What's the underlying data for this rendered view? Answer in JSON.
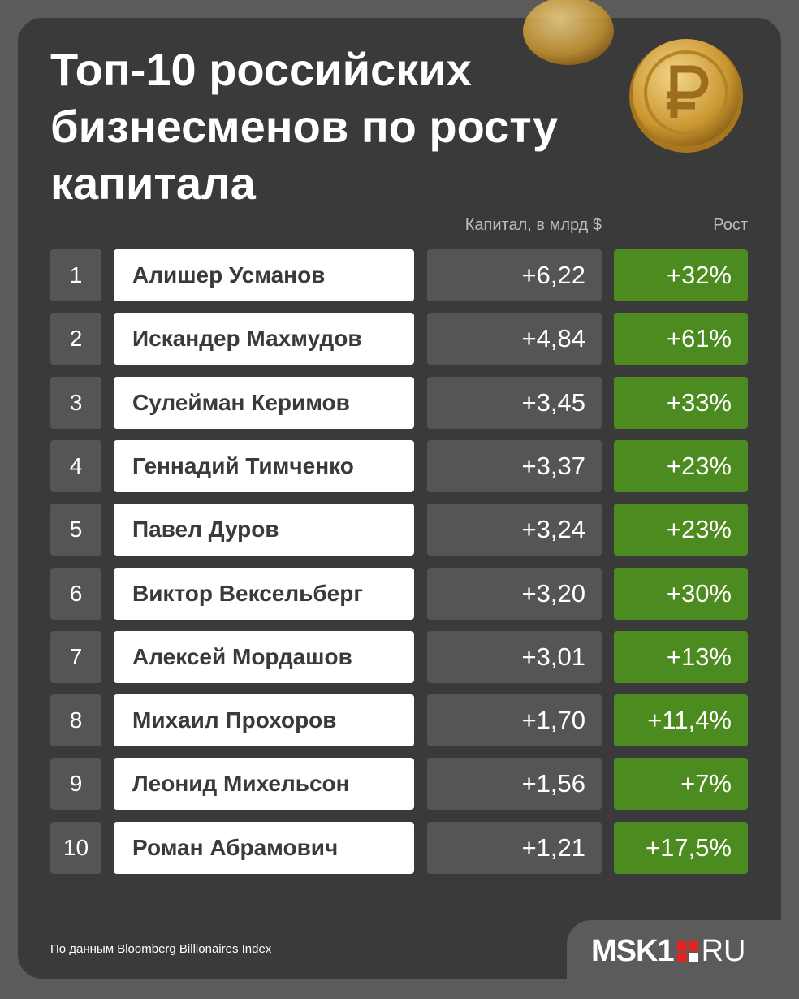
{
  "header": {
    "title_lines": [
      "Топ-10 российских",
      "бизнесменов по росту",
      "капитала"
    ]
  },
  "table": {
    "columns": [
      "Капитал, в млрд $",
      "Рост"
    ],
    "rows": [
      [
        "1",
        "Алишер Усманов",
        "+6,22",
        "+32%"
      ],
      [
        "2",
        "Искандер Махмудов",
        "+4,84",
        "+61%"
      ],
      [
        "3",
        "Сулейман Керимов",
        "+3,45",
        "+33%"
      ],
      [
        "4",
        "Геннадий Тимченко",
        "+3,37",
        "+23%"
      ],
      [
        "5",
        "Павел Дуров",
        "+3,24",
        "+23%"
      ],
      [
        "6",
        "Виктор Вексельберг",
        "+3,20",
        "+30%"
      ],
      [
        "7",
        "Алексей Мордашов",
        "+3,01",
        "+13%"
      ],
      [
        "8",
        "Михаил Прохоров",
        "+1,70",
        "+11,4%"
      ],
      [
        "9",
        "Леонид Михельсон",
        "+1,56",
        "+7%"
      ],
      [
        "10",
        "Роман Абрамович",
        "+1,21",
        "+17,5%"
      ]
    ]
  },
  "footer": {
    "source": "По данным Bloomberg Billionaires Index",
    "logo": [
      "MSK1",
      "RU"
    ]
  }
}
